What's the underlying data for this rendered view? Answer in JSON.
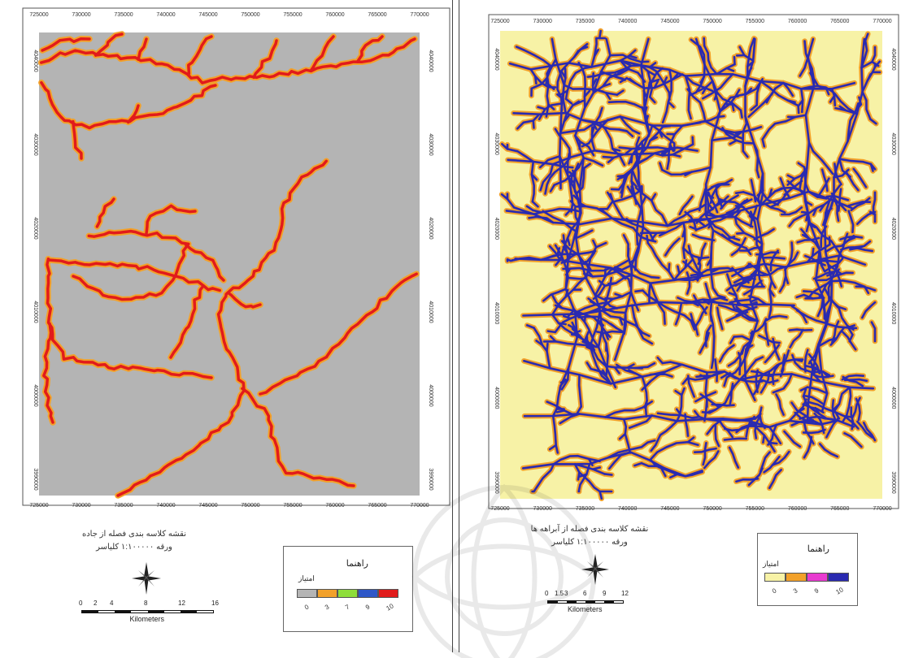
{
  "left_map": {
    "x_ticks": [
      "725000",
      "730000",
      "735000",
      "740000",
      "745000",
      "750000",
      "755000",
      "760000",
      "765000",
      "770000"
    ],
    "y_ticks": [
      "4040000",
      "4030000",
      "4020000",
      "4010000",
      "4000000",
      "3990000"
    ],
    "title_line1": "نقشه کلاسه بندی فصله از جاده",
    "title_line2": "ورقه ۱:۱۰۰۰۰۰ کلیاسر",
    "legend_title": "راهنما",
    "legend_subtitle": "امتیاز",
    "legend_values": [
      "0",
      "3",
      "7",
      "9",
      "10"
    ],
    "legend_colors": [
      "#b4b4b4",
      "#f2a12a",
      "#8ede3a",
      "#2e57c8",
      "#e11b1b"
    ],
    "scale_labels": [
      "0",
      "2",
      "4",
      "8",
      "12",
      "16"
    ],
    "scale_unit": "Kilometers",
    "background_color": "#b4b4b4",
    "line_color": "#e11b1b",
    "halo_color": "#f2a12a"
  },
  "right_map": {
    "x_ticks": [
      "725000",
      "730000",
      "735000",
      "740000",
      "745000",
      "750000",
      "755000",
      "760000",
      "765000",
      "770000"
    ],
    "y_ticks": [
      "4040000",
      "4030000",
      "4020000",
      "4010000",
      "4000000",
      "3990000"
    ],
    "title_line1": "نقشه کلاسه بندی فصله از آبراهه ها",
    "title_line2": "ورقه ۱:۱۰۰۰۰۰ کلیاسر",
    "legend_title": "راهنما",
    "legend_subtitle": "امتیاز",
    "legend_values": [
      "0",
      "3",
      "9",
      "10"
    ],
    "legend_colors": [
      "#f7f2a6",
      "#f2a12a",
      "#e83bd0",
      "#2a2ab0"
    ],
    "scale_labels": [
      "0",
      "1.5",
      "3",
      "6",
      "9",
      "12"
    ],
    "scale_unit": "Kilometers",
    "background_color": "#f7f2a6",
    "line_color": "#2a2ab0",
    "halo_color": "#f2a12a"
  }
}
